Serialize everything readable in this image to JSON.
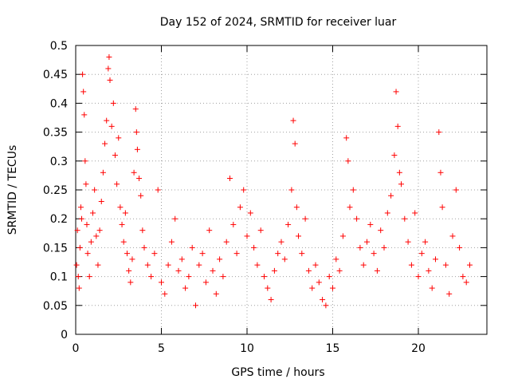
{
  "chart_data": {
    "type": "scatter",
    "title": "Day 152 of 2024, SRMTID for receiver luar",
    "xlabel": "GPS time / hours",
    "ylabel": "SRMTID / TECUs",
    "xlim": [
      0,
      24
    ],
    "ylim": [
      0,
      0.5
    ],
    "xticks": [
      0,
      5,
      10,
      15,
      20
    ],
    "xtick_labels": [
      "0",
      "5",
      "10",
      "15",
      "20"
    ],
    "yticks": [
      0,
      0.05,
      0.1,
      0.15,
      0.2,
      0.25,
      0.3,
      0.35,
      0.4,
      0.45,
      0.5
    ],
    "ytick_labels": [
      "0",
      "0.05",
      "0.1",
      "0.15",
      "0.2",
      "0.25",
      "0.3",
      "0.35",
      "0.4",
      "0.45",
      "0.5"
    ],
    "grid": true,
    "marker": "+",
    "marker_color": "#ff0000",
    "series": [
      {
        "name": "SRMTID",
        "points": [
          [
            0.05,
            0.12
          ],
          [
            0.1,
            0.18
          ],
          [
            0.15,
            0.1
          ],
          [
            0.2,
            0.08
          ],
          [
            0.25,
            0.15
          ],
          [
            0.3,
            0.22
          ],
          [
            0.35,
            0.2
          ],
          [
            0.4,
            0.45
          ],
          [
            0.45,
            0.42
          ],
          [
            0.5,
            0.38
          ],
          [
            0.55,
            0.3
          ],
          [
            0.6,
            0.26
          ],
          [
            0.65,
            0.19
          ],
          [
            0.7,
            0.14
          ],
          [
            0.8,
            0.1
          ],
          [
            0.9,
            0.16
          ],
          [
            1.0,
            0.21
          ],
          [
            1.1,
            0.25
          ],
          [
            1.2,
            0.17
          ],
          [
            1.3,
            0.12
          ],
          [
            1.4,
            0.18
          ],
          [
            1.5,
            0.23
          ],
          [
            1.6,
            0.28
          ],
          [
            1.7,
            0.33
          ],
          [
            1.8,
            0.37
          ],
          [
            1.9,
            0.46
          ],
          [
            1.95,
            0.48
          ],
          [
            2.0,
            0.44
          ],
          [
            2.1,
            0.36
          ],
          [
            2.2,
            0.4
          ],
          [
            2.3,
            0.31
          ],
          [
            2.4,
            0.26
          ],
          [
            2.5,
            0.34
          ],
          [
            2.6,
            0.22
          ],
          [
            2.7,
            0.19
          ],
          [
            2.8,
            0.16
          ],
          [
            2.9,
            0.21
          ],
          [
            3.0,
            0.14
          ],
          [
            3.1,
            0.11
          ],
          [
            3.2,
            0.09
          ],
          [
            3.3,
            0.13
          ],
          [
            3.4,
            0.28
          ],
          [
            3.5,
            0.39
          ],
          [
            3.55,
            0.35
          ],
          [
            3.6,
            0.32
          ],
          [
            3.7,
            0.27
          ],
          [
            3.8,
            0.24
          ],
          [
            3.9,
            0.18
          ],
          [
            4.0,
            0.15
          ],
          [
            4.2,
            0.12
          ],
          [
            4.4,
            0.1
          ],
          [
            4.6,
            0.14
          ],
          [
            4.8,
            0.25
          ],
          [
            5.0,
            0.09
          ],
          [
            5.2,
            0.07
          ],
          [
            5.4,
            0.12
          ],
          [
            5.6,
            0.16
          ],
          [
            5.8,
            0.2
          ],
          [
            6.0,
            0.11
          ],
          [
            6.2,
            0.13
          ],
          [
            6.4,
            0.08
          ],
          [
            6.6,
            0.1
          ],
          [
            6.8,
            0.15
          ],
          [
            7.0,
            0.05
          ],
          [
            7.2,
            0.12
          ],
          [
            7.4,
            0.14
          ],
          [
            7.6,
            0.09
          ],
          [
            7.8,
            0.18
          ],
          [
            8.0,
            0.11
          ],
          [
            8.2,
            0.07
          ],
          [
            8.4,
            0.13
          ],
          [
            8.6,
            0.1
          ],
          [
            8.8,
            0.16
          ],
          [
            9.0,
            0.27
          ],
          [
            9.2,
            0.19
          ],
          [
            9.4,
            0.14
          ],
          [
            9.6,
            0.22
          ],
          [
            9.8,
            0.25
          ],
          [
            10.0,
            0.17
          ],
          [
            10.2,
            0.21
          ],
          [
            10.4,
            0.15
          ],
          [
            10.6,
            0.12
          ],
          [
            10.8,
            0.18
          ],
          [
            11.0,
            0.1
          ],
          [
            11.2,
            0.08
          ],
          [
            11.4,
            0.06
          ],
          [
            11.6,
            0.11
          ],
          [
            11.8,
            0.14
          ],
          [
            12.0,
            0.16
          ],
          [
            12.2,
            0.13
          ],
          [
            12.4,
            0.19
          ],
          [
            12.6,
            0.25
          ],
          [
            12.7,
            0.37
          ],
          [
            12.8,
            0.33
          ],
          [
            12.9,
            0.22
          ],
          [
            13.0,
            0.17
          ],
          [
            13.2,
            0.14
          ],
          [
            13.4,
            0.2
          ],
          [
            13.6,
            0.11
          ],
          [
            13.8,
            0.08
          ],
          [
            14.0,
            0.12
          ],
          [
            14.2,
            0.09
          ],
          [
            14.4,
            0.06
          ],
          [
            14.6,
            0.05
          ],
          [
            14.8,
            0.1
          ],
          [
            15.0,
            0.08
          ],
          [
            15.2,
            0.13
          ],
          [
            15.4,
            0.11
          ],
          [
            15.6,
            0.17
          ],
          [
            15.8,
            0.34
          ],
          [
            15.9,
            0.3
          ],
          [
            16.0,
            0.22
          ],
          [
            16.2,
            0.25
          ],
          [
            16.4,
            0.2
          ],
          [
            16.6,
            0.15
          ],
          [
            16.8,
            0.12
          ],
          [
            17.0,
            0.16
          ],
          [
            17.2,
            0.19
          ],
          [
            17.4,
            0.14
          ],
          [
            17.6,
            0.11
          ],
          [
            17.8,
            0.18
          ],
          [
            18.0,
            0.15
          ],
          [
            18.2,
            0.21
          ],
          [
            18.4,
            0.24
          ],
          [
            18.6,
            0.31
          ],
          [
            18.7,
            0.42
          ],
          [
            18.8,
            0.36
          ],
          [
            18.9,
            0.28
          ],
          [
            19.0,
            0.26
          ],
          [
            19.2,
            0.2
          ],
          [
            19.4,
            0.16
          ],
          [
            19.6,
            0.12
          ],
          [
            19.8,
            0.21
          ],
          [
            20.0,
            0.1
          ],
          [
            20.2,
            0.14
          ],
          [
            20.4,
            0.16
          ],
          [
            20.6,
            0.11
          ],
          [
            20.8,
            0.08
          ],
          [
            21.0,
            0.13
          ],
          [
            21.2,
            0.35
          ],
          [
            21.3,
            0.28
          ],
          [
            21.4,
            0.22
          ],
          [
            21.6,
            0.12
          ],
          [
            21.8,
            0.07
          ],
          [
            22.0,
            0.17
          ],
          [
            22.2,
            0.25
          ],
          [
            22.4,
            0.15
          ],
          [
            22.6,
            0.1
          ],
          [
            22.8,
            0.09
          ],
          [
            23.0,
            0.12
          ]
        ]
      }
    ]
  }
}
